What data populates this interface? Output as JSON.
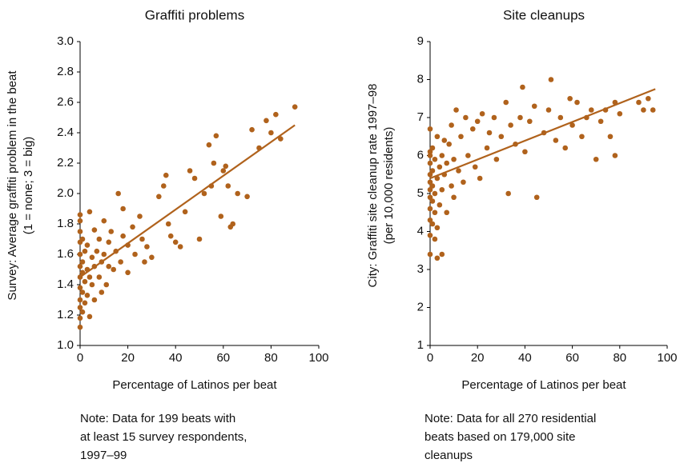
{
  "chart_data": [
    {
      "type": "scatter",
      "title": "Graffiti problems",
      "ylabel": [
        "Survey: Average graffiti problem in the beat",
        "(1 = none; 3 = big)"
      ],
      "xlabel": "Percentage of Latinos per beat",
      "note": [
        "Note: Data for 199 beats with",
        "at least 15 survey respondents,",
        "1997–99"
      ],
      "color": "#b0621c",
      "xlim": [
        0,
        100
      ],
      "xticks": [
        0,
        20,
        40,
        60,
        80,
        100
      ],
      "ylim": [
        1,
        3
      ],
      "yticks": [
        {
          "value": 1,
          "label": "1.0"
        },
        1.2,
        1.4,
        1.6,
        1.8,
        {
          "value": 2,
          "label": "2.0"
        },
        2.2,
        2.4,
        2.6,
        2.8,
        {
          "value": 3,
          "label": "3.0"
        }
      ],
      "x": [
        0,
        0,
        0,
        0,
        0,
        0,
        0,
        0,
        0,
        0,
        0,
        0,
        1,
        1,
        1,
        1,
        1,
        2,
        2,
        2,
        3,
        3,
        3,
        4,
        4,
        4,
        5,
        5,
        6,
        6,
        6,
        7,
        8,
        8,
        9,
        9,
        10,
        10,
        11,
        12,
        12,
        13,
        14,
        15,
        16,
        17,
        18,
        18,
        20,
        20,
        22,
        23,
        25,
        26,
        27,
        28,
        30,
        33,
        35,
        36,
        37,
        38,
        40,
        42,
        44,
        46,
        48,
        50,
        52,
        54,
        55,
        56,
        57,
        59,
        60,
        61,
        62,
        63,
        64,
        66,
        70,
        72,
        75,
        78,
        80,
        82,
        84,
        90
      ],
      "values": [
        1.12,
        1.18,
        1.25,
        1.3,
        1.38,
        1.45,
        1.52,
        1.6,
        1.68,
        1.75,
        1.82,
        1.86,
        1.22,
        1.35,
        1.48,
        1.55,
        1.7,
        1.28,
        1.42,
        1.62,
        1.33,
        1.5,
        1.66,
        1.19,
        1.45,
        1.88,
        1.4,
        1.58,
        1.3,
        1.52,
        1.76,
        1.62,
        1.45,
        1.7,
        1.35,
        1.55,
        1.6,
        1.82,
        1.4,
        1.52,
        1.68,
        1.75,
        1.5,
        1.62,
        2.0,
        1.55,
        1.72,
        1.9,
        1.48,
        1.66,
        1.78,
        1.6,
        1.85,
        1.7,
        1.55,
        1.65,
        1.58,
        1.98,
        2.05,
        2.12,
        1.8,
        1.72,
        1.68,
        1.65,
        1.88,
        2.15,
        2.1,
        1.7,
        2.0,
        2.32,
        2.05,
        2.2,
        2.38,
        1.85,
        2.15,
        2.18,
        2.05,
        1.78,
        1.8,
        2.0,
        1.98,
        2.42,
        2.3,
        2.48,
        2.4,
        2.52,
        2.36,
        2.57
      ],
      "trend": {
        "x": [
          0,
          90
        ],
        "values": [
          1.45,
          2.45
        ]
      }
    },
    {
      "type": "scatter",
      "title": "Site cleanups",
      "ylabel": [
        "City: Graffiti site cleanup rate 1997–98",
        "(per 10,000 residents)"
      ],
      "xlabel": "Percentage of Latinos per beat",
      "note": [
        "Note: Data for all 270 residential",
        "beats based on 179,000 site",
        "cleanups"
      ],
      "color": "#b0621c",
      "xlim": [
        0,
        100
      ],
      "xticks": [
        0,
        20,
        40,
        60,
        80,
        100
      ],
      "ylim": [
        1,
        9
      ],
      "yticks": [
        1,
        2,
        3,
        4,
        5,
        6,
        7,
        8,
        9
      ],
      "x": [
        0,
        0,
        0,
        0,
        0,
        0,
        0,
        0,
        0,
        0,
        0,
        0,
        1,
        1,
        1,
        1,
        1,
        2,
        2,
        2,
        2,
        3,
        3,
        3,
        3,
        4,
        4,
        5,
        5,
        5,
        6,
        6,
        7,
        7,
        8,
        9,
        9,
        10,
        10,
        11,
        12,
        13,
        14,
        15,
        16,
        18,
        19,
        20,
        21,
        22,
        24,
        25,
        27,
        28,
        30,
        32,
        33,
        34,
        36,
        38,
        39,
        40,
        42,
        44,
        45,
        48,
        50,
        51,
        53,
        55,
        57,
        59,
        60,
        62,
        64,
        66,
        68,
        70,
        72,
        74,
        76,
        78,
        78,
        80,
        88,
        90,
        92,
        94
      ],
      "values": [
        3.4,
        3.9,
        4.3,
        4.6,
        4.9,
        5.1,
        5.3,
        5.5,
        5.8,
        6.0,
        6.1,
        6.7,
        4.2,
        4.8,
        5.2,
        5.6,
        6.2,
        3.8,
        4.5,
        5.0,
        5.9,
        3.3,
        4.1,
        5.4,
        6.5,
        4.7,
        5.7,
        3.4,
        5.1,
        6.0,
        5.5,
        6.4,
        4.5,
        5.8,
        6.3,
        5.2,
        6.8,
        4.9,
        5.9,
        7.2,
        5.6,
        6.5,
        5.3,
        7.0,
        6.0,
        6.7,
        5.7,
        6.9,
        5.4,
        7.1,
        6.2,
        6.6,
        7.0,
        5.9,
        6.5,
        7.4,
        5.0,
        6.8,
        6.3,
        7.0,
        7.8,
        6.1,
        6.9,
        7.3,
        4.9,
        6.6,
        7.2,
        8.0,
        6.4,
        7.0,
        6.2,
        7.5,
        6.8,
        7.4,
        6.5,
        7.0,
        7.2,
        5.9,
        6.9,
        7.2,
        6.5,
        7.4,
        6.0,
        7.1,
        7.4,
        7.2,
        7.5,
        7.2
      ],
      "trend": {
        "x": [
          0,
          95
        ],
        "values": [
          5.4,
          7.75
        ]
      }
    }
  ]
}
